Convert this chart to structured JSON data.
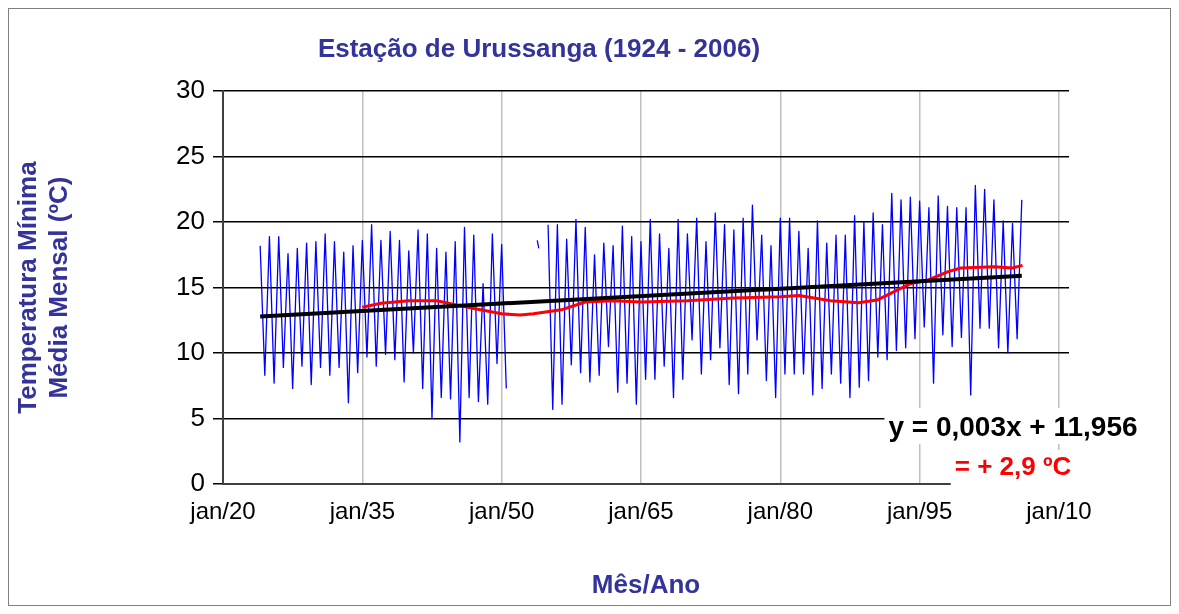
{
  "chart_data": {
    "type": "line",
    "title": "Estação de Urussanga (1924 - 2006)",
    "xlabel": "Mês/Ano",
    "ylabel": "Temperatura Mínima\nMédia Mensal (ºC)",
    "xlim": [
      "1920-01",
      "2011-02"
    ],
    "xticks": [
      {
        "value": "1920-01",
        "label": "jan/20"
      },
      {
        "value": "1935-01",
        "label": "jan/35"
      },
      {
        "value": "1950-01",
        "label": "jan/50"
      },
      {
        "value": "1965-01",
        "label": "jan/65"
      },
      {
        "value": "1980-01",
        "label": "jan/80"
      },
      {
        "value": "1995-01",
        "label": "jan/95"
      },
      {
        "value": "2010-01",
        "label": "jan/10"
      }
    ],
    "ylim": [
      0,
      30
    ],
    "yticks": [
      0,
      5,
      10,
      15,
      20,
      25,
      30
    ],
    "grid": true,
    "legend": false,
    "marker": "none",
    "line_style": "solid",
    "annotations": [
      "y = 0,003x + 11,956",
      "= + 2,9 ºC"
    ],
    "series": [
      {
        "color": "#0000ff",
        "x": [
          "1924-01",
          "1924-07",
          "1925-01",
          "1925-07",
          "1926-01",
          "1926-07",
          "1927-01",
          "1927-07",
          "1928-01",
          "1928-07",
          "1929-01",
          "1929-07",
          "1930-01",
          "1930-07",
          "1931-01",
          "1931-07",
          "1932-01",
          "1932-07",
          "1933-01",
          "1933-07",
          "1934-01",
          "1934-07",
          "1935-01",
          "1935-07",
          "1936-01",
          "1936-07",
          "1937-01",
          "1937-07",
          "1938-01",
          "1938-07",
          "1939-01",
          "1939-07",
          "1940-01",
          "1940-07",
          "1941-01",
          "1941-07",
          "1942-01",
          "1942-07",
          "1943-01",
          "1943-07",
          "1944-01",
          "1944-07",
          "1945-01",
          "1945-07",
          "1946-01",
          "1946-07",
          "1947-01",
          "1947-07",
          "1948-01",
          "1948-07",
          "1949-01",
          "1949-07",
          "1950-01",
          "1950-07",
          "1952-01",
          "1953-11",
          "1954-01",
          "1954-06",
          "1955-01",
          "1955-07",
          "1956-01",
          "1956-07",
          "1957-01",
          "1957-07",
          "1958-01",
          "1958-07",
          "1959-01",
          "1959-07",
          "1960-01",
          "1960-07",
          "1961-01",
          "1961-07",
          "1962-01",
          "1962-07",
          "1963-01",
          "1963-07",
          "1964-01",
          "1964-07",
          "1965-01",
          "1965-07",
          "1966-01",
          "1966-07",
          "1967-01",
          "1967-07",
          "1968-01",
          "1968-07",
          "1969-01",
          "1969-07",
          "1970-01",
          "1970-07",
          "1971-01",
          "1971-07",
          "1972-01",
          "1972-07",
          "1973-01",
          "1973-07",
          "1974-01",
          "1974-07",
          "1975-01",
          "1975-07",
          "1976-01",
          "1976-07",
          "1977-01",
          "1977-07",
          "1978-01",
          "1978-07",
          "1979-01",
          "1979-07",
          "1980-01",
          "1980-07",
          "1981-01",
          "1981-07",
          "1982-01",
          "1982-07",
          "1983-01",
          "1983-07",
          "1984-01",
          "1984-07",
          "1985-01",
          "1985-07",
          "1986-01",
          "1986-07",
          "1987-01",
          "1987-07",
          "1988-01",
          "1988-07",
          "1989-01",
          "1989-07",
          "1990-01",
          "1990-07",
          "1991-01",
          "1991-07",
          "1992-01",
          "1992-07",
          "1993-01",
          "1993-07",
          "1994-01",
          "1994-07",
          "1995-01",
          "1995-07",
          "1996-01",
          "1996-07",
          "1997-01",
          "1997-07",
          "1998-01",
          "1998-07",
          "1999-01",
          "1999-07",
          "2000-01",
          "2000-07",
          "2001-01",
          "2001-07",
          "2002-01",
          "2002-07",
          "2003-01",
          "2003-07",
          "2004-01",
          "2004-07",
          "2005-01",
          "2005-07",
          "2006-01"
        ],
        "values": [
          18.2,
          8.3,
          18.9,
          7.7,
          18.9,
          8.9,
          17.6,
          7.3,
          18.0,
          9.0,
          18.4,
          7.6,
          18.5,
          8.9,
          19.1,
          8.3,
          18.5,
          8.9,
          17.7,
          6.2,
          18.2,
          8.5,
          18.6,
          9.7,
          19.8,
          9.0,
          18.6,
          9.9,
          19.3,
          9.5,
          18.6,
          7.8,
          17.8,
          10.0,
          19.4,
          7.3,
          19.1,
          5.0,
          18.0,
          6.6,
          17.7,
          6.5,
          18.5,
          3.2,
          19.6,
          6.6,
          19.0,
          6.3,
          15.3,
          6.1,
          19.1,
          9.2,
          18.3,
          7.3,
          null,
          18.6,
          18.0,
          null,
          19.8,
          5.7,
          19.8,
          6.1,
          18.7,
          9.1,
          20.2,
          8.5,
          19.6,
          7.8,
          17.5,
          8.3,
          18.4,
          10.5,
          18.2,
          7.0,
          19.7,
          7.7,
          18.9,
          6.1,
          18.5,
          8.0,
          20.2,
          8.0,
          19.1,
          9.0,
          18.0,
          6.6,
          20.2,
          8.0,
          19.1,
          11.0,
          20.3,
          8.4,
          18.5,
          9.5,
          20.7,
          10.4,
          19.8,
          7.6,
          19.4,
          6.9,
          20.3,
          8.4,
          21.3,
          11.0,
          19.0,
          7.9,
          18.2,
          6.6,
          20.3,
          8.4,
          20.3,
          8.4,
          19.3,
          8.4,
          18.0,
          6.8,
          20.1,
          7.3,
          18.4,
          8.4,
          19.0,
          7.7,
          19.0,
          6.6,
          20.5,
          7.4,
          20.0,
          7.9,
          20.7,
          9.7,
          19.8,
          9.5,
          22.2,
          10.2,
          21.7,
          10.4,
          21.9,
          11.1,
          21.6,
          12.0,
          21.1,
          7.7,
          22.0,
          11.4,
          21.2,
          10.5,
          21.1,
          11.2,
          21.1,
          6.8,
          22.8,
          11.9,
          22.5,
          11.9,
          21.7,
          10.4,
          20.1,
          10.0,
          19.9,
          11.1,
          21.7
        ]
      },
      {
        "color": "#ff0000",
        "x": [
          "1935-01",
          "1937-01",
          "1940-01",
          "1943-01",
          "1945-01",
          "1947-01",
          "1950-01",
          "1952-01",
          "1953-06",
          "1956-06",
          "1959-01",
          "1962-01",
          "1965-01",
          "1970-01",
          "1975-01",
          "1980-01",
          "1982-01",
          "1985-06",
          "1988-06",
          "1990-06",
          "1994-01",
          "1996-01",
          "1998-01",
          "1999-06",
          "2003-01",
          "2005-01",
          "2006-02"
        ],
        "values": [
          13.5,
          13.8,
          14.0,
          14.0,
          13.7,
          13.4,
          13.0,
          12.9,
          13.0,
          13.3,
          13.9,
          14.0,
          13.9,
          14.0,
          14.2,
          14.3,
          14.4,
          14.0,
          13.85,
          14.05,
          15.3,
          15.6,
          16.2,
          16.5,
          16.6,
          16.5,
          16.7
        ]
      },
      {
        "color": "#000000",
        "x": [
          "1924-01",
          "2006-01"
        ],
        "values": [
          12.8,
          15.9
        ]
      }
    ]
  }
}
